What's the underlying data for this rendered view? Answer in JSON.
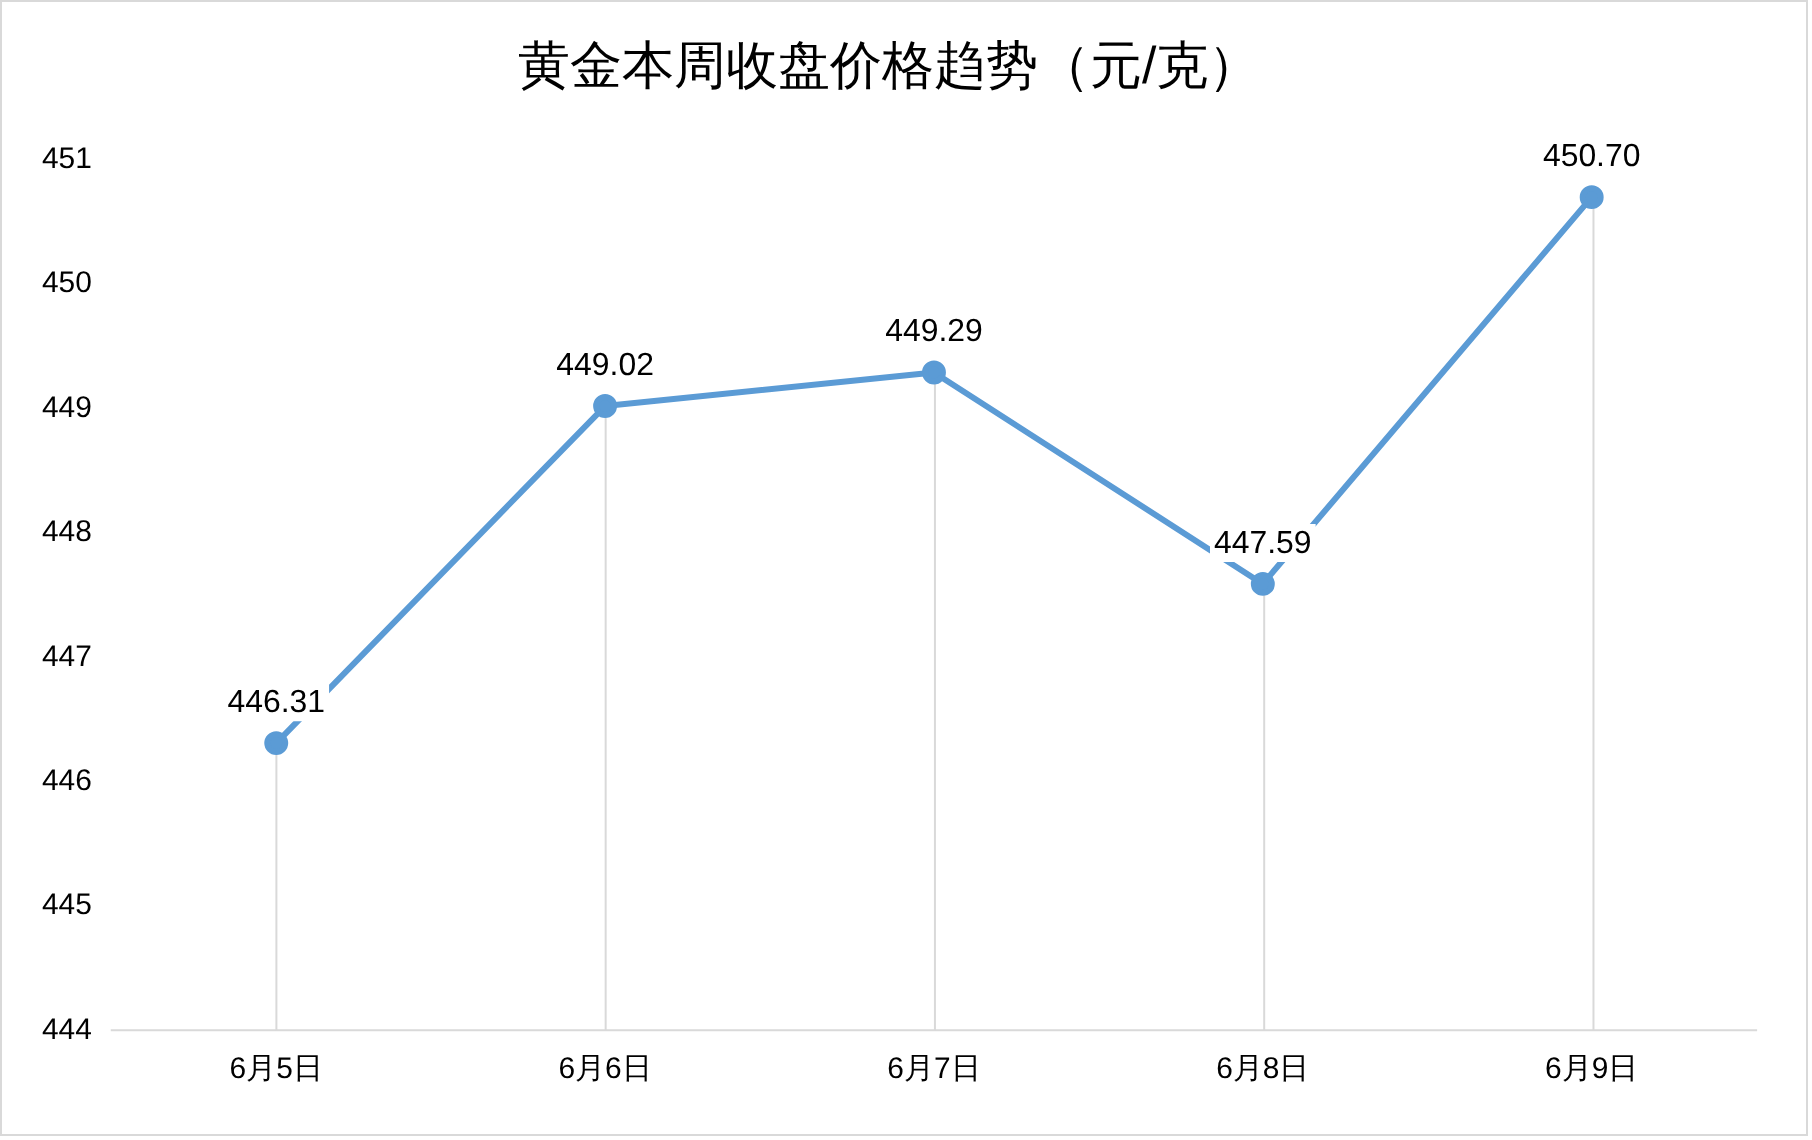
{
  "chart_data": {
    "type": "line",
    "title": "黄金本周收盘价格趋势（元/克）",
    "categories": [
      "6月5日",
      "6月6日",
      "6月7日",
      "6月8日",
      "6月9日"
    ],
    "series": [
      {
        "color": "#5b9bd5",
        "values": [
          446.31,
          449.02,
          449.29,
          447.59,
          450.7
        ],
        "value_labels": [
          "446.31",
          "449.02",
          "449.29",
          "447.59",
          "450.70"
        ]
      }
    ],
    "ylim": [
      444,
      451
    ],
    "yticks": [
      444,
      445,
      446,
      447,
      448,
      449,
      450,
      451
    ],
    "grid": "x",
    "legend": false,
    "marker": "circle",
    "line_style": "solid"
  }
}
